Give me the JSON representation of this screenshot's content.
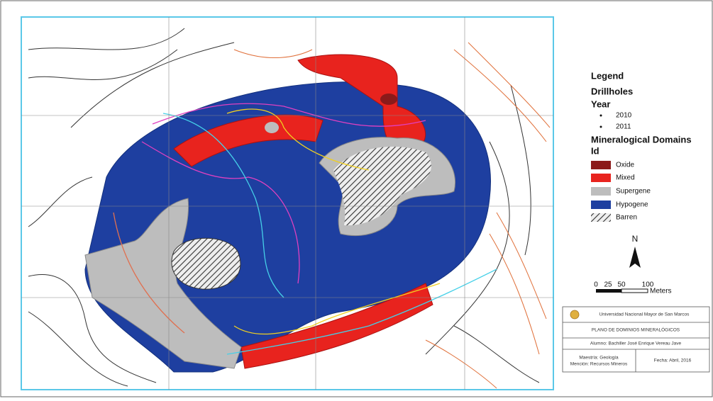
{
  "legend": {
    "title": "Legend",
    "drillholes": "Drillholes",
    "year": "Year",
    "years": [
      "2010",
      "2011"
    ],
    "domains_title": "Mineralogical Domains",
    "id": "Id",
    "domains": [
      "Oxide",
      "Mixed",
      "Supergene",
      "Hypogene",
      "Barren"
    ]
  },
  "north": "N",
  "scale": {
    "labels": [
      "0",
      "25",
      "50",
      "100"
    ],
    "unit": "Meters"
  },
  "title_block": {
    "university": "Universidad Nacional Mayor de San Marcos",
    "plan": "PLANO DE DOMINIOS MINERALÓGICOS",
    "student": "Alumno: Bachiller José Enrique Vereau Jave",
    "degree": "Maestría: Geología",
    "mention": "Mención: Recursos Mineros",
    "date": "Fecha: Abril, 2016"
  }
}
